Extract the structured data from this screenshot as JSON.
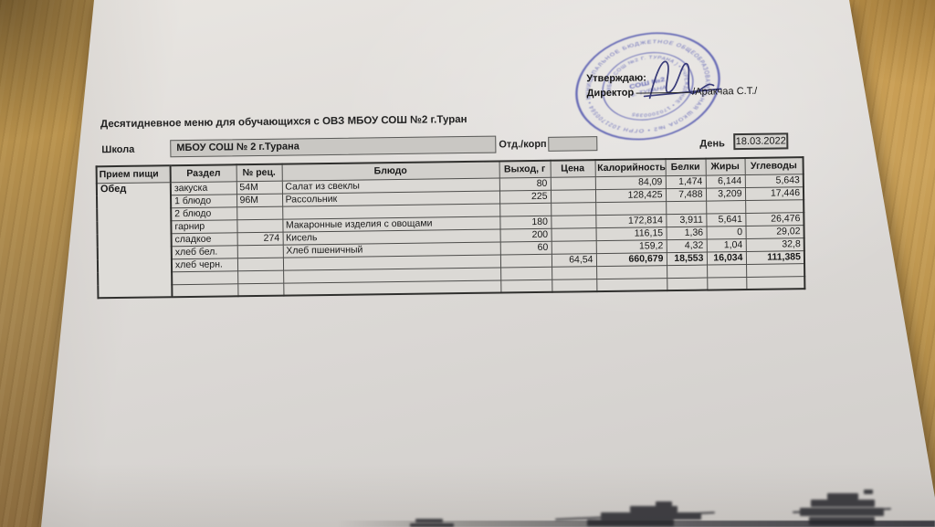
{
  "document": {
    "title": "Десятидневное меню для обучающихся с ОВЗ МБОУ СОШ №2 г.Туран",
    "school": {
      "label": "Школа",
      "value": "МБОУ СОШ № 2 г.Турана"
    },
    "dept": {
      "label": "Отд./корп",
      "value": ""
    },
    "day": {
      "label": "День",
      "value": "18.03.2022"
    }
  },
  "approval": {
    "approve_text": "Утверждаю:",
    "director_label": "Директор",
    "director_name": "/Аракчаа С.Т./",
    "stamp": {
      "ring_text": "МУНИЦИПАЛЬНОЕ БЮДЖЕТНОЕ ОБЩЕОБРАЗОВАТЕЛЬНАЯ ШКОЛА №2 • ОГРН 1021700564 • Г. ТУРАНА • ",
      "inner_ring_text": "( МБОУ СОШ №2 Г. ТУРАНА ) • УЧРЕЖДЕНИЕ • 1702000395 ",
      "center_line1": "СОШ №2",
      "center_line2": "г. ТУРАНА",
      "color": "#474cab"
    }
  },
  "menu_table": {
    "columns": [
      "Прием пищи",
      "Раздел",
      "№ рец.",
      "Блюдо",
      "Выход, г",
      "Цена",
      "Калорийность",
      "Белки",
      "Жиры",
      "Углеводы"
    ],
    "meal_value": "Обед",
    "rows": [
      {
        "section": "закуска",
        "rec": "54М",
        "dish": "Салат из свеклы",
        "out": "80",
        "price": "",
        "cal": "84,09",
        "protein": "1,474",
        "fat": "6,144",
        "carbs": "5,643"
      },
      {
        "section": "1 блюдо",
        "rec": "96М",
        "dish": "Рассольник",
        "out": "225",
        "price": "",
        "cal": "128,425",
        "protein": "7,488",
        "fat": "3,209",
        "carbs": "17,446"
      },
      {
        "section": "2 блюдо",
        "rec": "",
        "dish": "",
        "out": "",
        "price": "",
        "cal": "",
        "protein": "",
        "fat": "",
        "carbs": ""
      },
      {
        "section": "гарнир",
        "rec": "",
        "dish": "Макаронные изделия с овощами",
        "out": "180",
        "price": "",
        "cal": "172,814",
        "protein": "3,911",
        "fat": "5,641",
        "carbs": "26,476"
      },
      {
        "section": "сладкое",
        "rec": "274",
        "dish": "Кисель",
        "out": "200",
        "price": "",
        "cal": "116,15",
        "protein": "1,36",
        "fat": "0",
        "carbs": "29,02"
      },
      {
        "section": "хлеб бел.",
        "rec": "",
        "dish": "Хлеб пшеничный",
        "out": "60",
        "price": "",
        "cal": "159,2",
        "protein": "4,32",
        "fat": "1,04",
        "carbs": "32,8"
      },
      {
        "section": "хлеб черн.",
        "rec": "",
        "dish": "",
        "out": "",
        "price": "64,54",
        "cal": "660,679",
        "protein": "18,553",
        "fat": "16,034",
        "carbs": "111,385",
        "totals": true
      },
      {
        "section": "",
        "rec": "",
        "dish": "",
        "out": "",
        "price": "",
        "cal": "",
        "protein": "",
        "fat": "",
        "carbs": ""
      },
      {
        "section": "",
        "rec": "",
        "dish": "",
        "out": "",
        "price": "",
        "cal": "",
        "protein": "",
        "fat": "",
        "carbs": ""
      }
    ]
  }
}
